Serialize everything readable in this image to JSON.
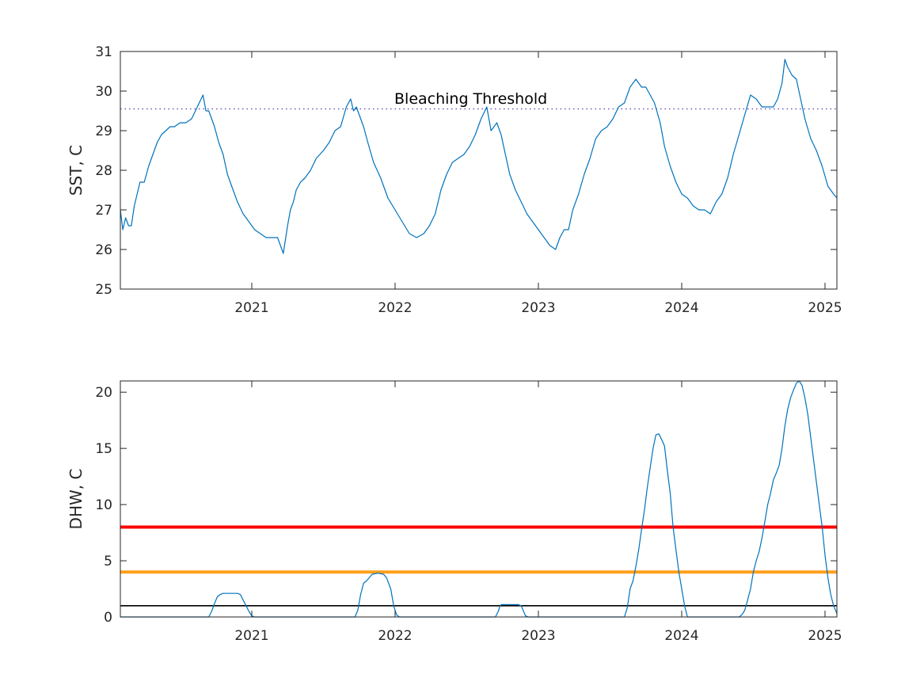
{
  "chart_data": [
    {
      "type": "line",
      "ylabel": "SST, C",
      "ylim": [
        25,
        31
      ],
      "yticks": [
        25,
        26,
        27,
        28,
        29,
        30,
        31
      ],
      "xlim": [
        2020.083,
        2025.083
      ],
      "xticks": [
        2021,
        2022,
        2023,
        2024,
        2025
      ],
      "xtick_labels": [
        "2021",
        "2022",
        "2023",
        "2024",
        "2025"
      ],
      "grid": false,
      "annotations": [
        {
          "text": "Bleaching Threshold",
          "x": 2022.0,
          "y": 29.75
        }
      ],
      "reference_lines": [
        {
          "y": 29.55,
          "style": "dotted",
          "color": "#5a3ea8"
        }
      ],
      "series": [
        {
          "color": "#0072BD",
          "x": [
            2020.083,
            2020.1,
            2020.12,
            2020.14,
            2020.16,
            2020.18,
            2020.2,
            2020.22,
            2020.25,
            2020.28,
            2020.31,
            2020.34,
            2020.37,
            2020.4,
            2020.43,
            2020.46,
            2020.5,
            2020.54,
            2020.58,
            2020.62,
            2020.66,
            2020.68,
            2020.7,
            2020.72,
            2020.74,
            2020.77,
            2020.8,
            2020.83,
            2020.86,
            2020.9,
            2020.94,
            2020.98,
            2021.02,
            2021.06,
            2021.1,
            2021.14,
            2021.18,
            2021.22,
            2021.25,
            2021.27,
            2021.29,
            2021.31,
            2021.34,
            2021.37,
            2021.41,
            2021.45,
            2021.5,
            2021.54,
            2021.58,
            2021.62,
            2021.66,
            2021.69,
            2021.71,
            2021.73,
            2021.75,
            2021.78,
            2021.81,
            2021.85,
            2021.9,
            2021.95,
            2022.0,
            2022.05,
            2022.1,
            2022.15,
            2022.2,
            2022.24,
            2022.28,
            2022.32,
            2022.36,
            2022.4,
            2022.44,
            2022.48,
            2022.52,
            2022.56,
            2022.6,
            2022.64,
            2022.67,
            2022.69,
            2022.71,
            2022.74,
            2022.77,
            2022.8,
            2022.84,
            2022.88,
            2022.92,
            2022.96,
            2023.0,
            2023.04,
            2023.08,
            2023.12,
            2023.15,
            2023.18,
            2023.21,
            2023.24,
            2023.28,
            2023.32,
            2023.36,
            2023.4,
            2023.44,
            2023.48,
            2023.52,
            2023.56,
            2023.6,
            2023.64,
            2023.68,
            2023.72,
            2023.75,
            2023.78,
            2023.81,
            2023.85,
            2023.88,
            2023.92,
            2023.96,
            2024.0,
            2024.04,
            2024.08,
            2024.12,
            2024.16,
            2024.2,
            2024.24,
            2024.28,
            2024.32,
            2024.36,
            2024.4,
            2024.44,
            2024.48,
            2024.52,
            2024.56,
            2024.6,
            2024.64,
            2024.67,
            2024.7,
            2024.72,
            2024.74,
            2024.77,
            2024.8,
            2024.83,
            2024.86,
            2024.9,
            2024.94,
            2024.98,
            2025.02,
            2025.06,
            2025.083
          ],
          "values": [
            27.0,
            26.5,
            26.8,
            26.6,
            26.6,
            27.1,
            27.4,
            27.7,
            27.7,
            28.1,
            28.4,
            28.7,
            28.9,
            29.0,
            29.1,
            29.1,
            29.2,
            29.2,
            29.3,
            29.6,
            29.9,
            29.5,
            29.5,
            29.3,
            29.1,
            28.7,
            28.4,
            27.9,
            27.6,
            27.2,
            26.9,
            26.7,
            26.5,
            26.4,
            26.3,
            26.3,
            26.3,
            25.9,
            26.6,
            27.0,
            27.2,
            27.5,
            27.7,
            27.8,
            28.0,
            28.3,
            28.5,
            28.7,
            29.0,
            29.1,
            29.6,
            29.8,
            29.5,
            29.6,
            29.4,
            29.1,
            28.7,
            28.2,
            27.8,
            27.3,
            27.0,
            26.7,
            26.4,
            26.3,
            26.4,
            26.6,
            26.9,
            27.5,
            27.9,
            28.2,
            28.3,
            28.4,
            28.6,
            28.9,
            29.3,
            29.6,
            29.0,
            29.1,
            29.2,
            28.9,
            28.4,
            27.9,
            27.5,
            27.2,
            26.9,
            26.7,
            26.5,
            26.3,
            26.1,
            26.0,
            26.3,
            26.5,
            26.5,
            27.0,
            27.4,
            27.9,
            28.3,
            28.8,
            29.0,
            29.1,
            29.3,
            29.6,
            29.7,
            30.1,
            30.3,
            30.1,
            30.1,
            29.9,
            29.7,
            29.2,
            28.6,
            28.1,
            27.7,
            27.4,
            27.3,
            27.1,
            27.0,
            27.0,
            26.9,
            27.2,
            27.4,
            27.8,
            28.4,
            28.9,
            29.4,
            29.9,
            29.8,
            29.6,
            29.6,
            29.6,
            29.8,
            30.2,
            30.8,
            30.6,
            30.4,
            30.3,
            29.8,
            29.3,
            28.8,
            28.5,
            28.1,
            27.6,
            27.4,
            27.3
          ]
        }
      ]
    },
    {
      "type": "line",
      "ylabel": "DHW, C",
      "ylim": [
        0,
        21
      ],
      "yticks": [
        0,
        5,
        10,
        15,
        20
      ],
      "xlim": [
        2020.083,
        2025.083
      ],
      "xticks": [
        2021,
        2022,
        2023,
        2024,
        2025
      ],
      "xtick_labels": [
        "2021",
        "2022",
        "2023",
        "2024",
        "2025"
      ],
      "grid": false,
      "reference_lines": [
        {
          "y": 8,
          "color": "#ff0000"
        },
        {
          "y": 4,
          "color": "#ff9f1a"
        },
        {
          "y": 1,
          "color": "#000000"
        }
      ],
      "series": [
        {
          "color": "#0072BD",
          "x": [
            2020.083,
            2020.7,
            2020.72,
            2020.74,
            2020.76,
            2020.78,
            2020.8,
            2020.9,
            2020.92,
            2020.94,
            2020.98,
            2021.0,
            2021.02,
            2021.72,
            2021.74,
            2021.76,
            2021.78,
            2021.8,
            2021.82,
            2021.84,
            2021.88,
            2021.92,
            2021.94,
            2021.97,
            2021.99,
            2022.01,
            2022.03,
            2022.05,
            2022.7,
            2022.72,
            2022.73,
            2022.74,
            2022.77,
            2022.86,
            2022.88,
            2022.89,
            2022.9,
            2022.91,
            2022.93,
            2023.6,
            2023.62,
            2023.64,
            2023.66,
            2023.68,
            2023.7,
            2023.72,
            2023.74,
            2023.76,
            2023.78,
            2023.8,
            2023.82,
            2023.84,
            2023.86,
            2023.88,
            2023.9,
            2023.92,
            2023.94,
            2023.96,
            2023.98,
            2024.0,
            2024.02,
            2024.04,
            2024.06,
            2024.08,
            2024.1,
            2024.4,
            2024.42,
            2024.44,
            2024.46,
            2024.48,
            2024.5,
            2024.52,
            2024.54,
            2024.56,
            2024.58,
            2024.6,
            2024.62,
            2024.64,
            2024.66,
            2024.68,
            2024.7,
            2024.72,
            2024.74,
            2024.76,
            2024.78,
            2024.8,
            2024.82,
            2024.84,
            2024.86,
            2024.88,
            2024.9,
            2024.92,
            2024.94,
            2024.96,
            2024.98,
            2025.0,
            2025.02,
            2025.04,
            2025.06,
            2025.083
          ],
          "values": [
            0,
            0,
            0.5,
            1.2,
            1.8,
            2.0,
            2.1,
            2.1,
            2.0,
            1.5,
            0.5,
            0.1,
            0,
            0,
            0.6,
            2.0,
            3.0,
            3.2,
            3.5,
            3.8,
            3.9,
            3.8,
            3.5,
            2.5,
            1.0,
            0.2,
            0,
            0,
            0,
            0.5,
            0.9,
            1.1,
            1.1,
            1.1,
            1.0,
            0.7,
            0.4,
            0.1,
            0,
            0,
            0.8,
            2.5,
            3.2,
            4.5,
            6.0,
            7.8,
            9.5,
            11.5,
            13.3,
            15.0,
            16.2,
            16.3,
            15.8,
            15.2,
            13.0,
            11.0,
            8.0,
            6.0,
            4.0,
            2.5,
            1.0,
            0,
            0,
            0,
            0,
            0,
            0.2,
            0.6,
            1.5,
            2.5,
            4.0,
            5.0,
            5.8,
            7.0,
            8.5,
            10.0,
            11.0,
            12.2,
            12.8,
            13.5,
            15.0,
            17.0,
            18.5,
            19.5,
            20.2,
            20.8,
            21.0,
            20.6,
            19.5,
            18.0,
            16.0,
            14.0,
            12.0,
            10.0,
            8.0,
            5.5,
            3.5,
            2.0,
            1.0,
            0.3
          ]
        }
      ]
    }
  ]
}
